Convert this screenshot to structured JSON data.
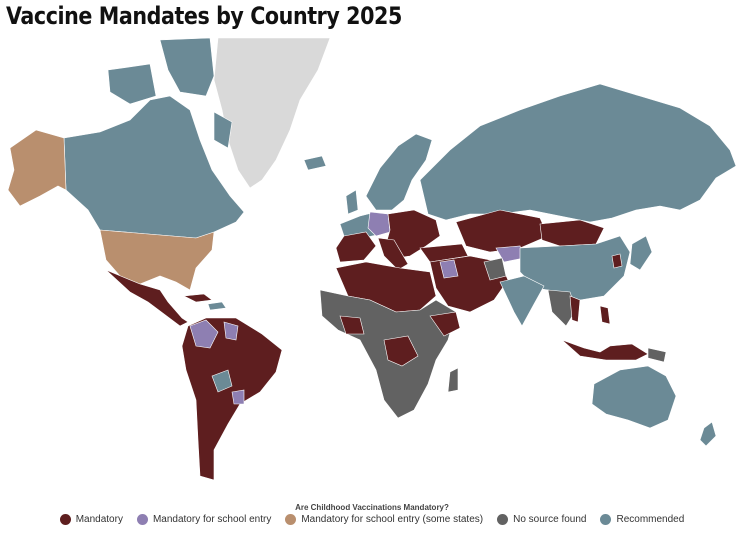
{
  "title": "Vaccine Mandates by Country 2025",
  "legend": {
    "title": "Are Childhood Vaccinations Mandatory?",
    "items": [
      {
        "label": "Mandatory",
        "color": "#5e1e1f"
      },
      {
        "label": "Mandatory for school entry",
        "color": "#8e7fb2"
      },
      {
        "label": "Mandatory for school entry (some states)",
        "color": "#b98f6e"
      },
      {
        "label": "No source found",
        "color": "#626262"
      },
      {
        "label": "Recommended",
        "color": "#6b8a96"
      }
    ]
  },
  "colors": {
    "mandatory": "#5e1e1f",
    "school": "#8e7fb2",
    "some_states": "#b98f6e",
    "no_source": "#626262",
    "recommended": "#6b8a96",
    "greenland": "#d9d9d9"
  }
}
